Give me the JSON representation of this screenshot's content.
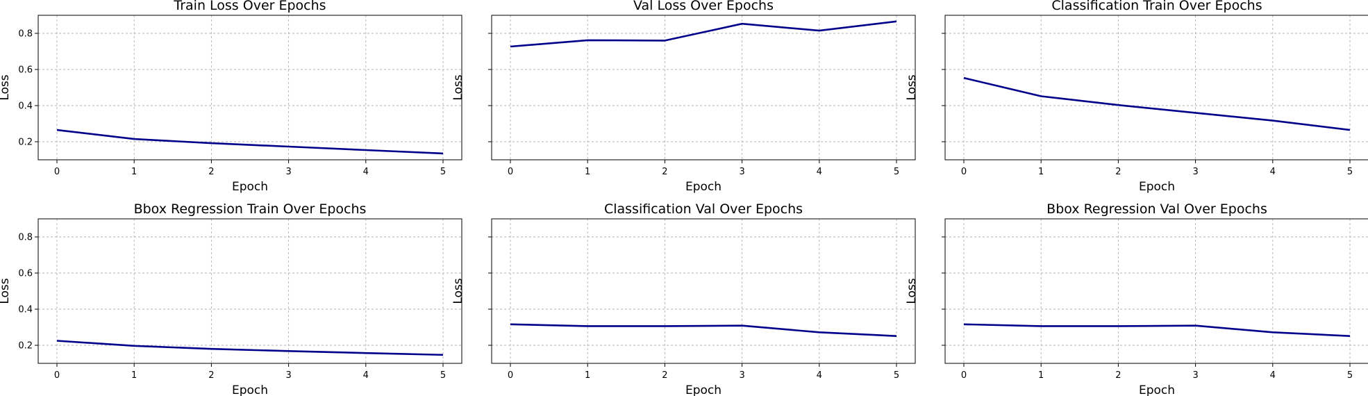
{
  "chart_data": [
    {
      "type": "line",
      "title": "Train Loss Over Epochs",
      "xlabel": "Epoch",
      "ylabel": "Loss",
      "x": [
        0,
        1,
        2,
        3,
        4,
        5
      ],
      "xticks": [
        "0",
        "1",
        "2",
        "3",
        "4",
        "5"
      ],
      "yticks": [
        "0.2",
        "0.4",
        "0.6",
        "0.8"
      ],
      "ylim": [
        0.1,
        0.9
      ],
      "y_tick_labels_shown": true,
      "grid": true,
      "series": [
        {
          "values": [
            0.265,
            0.215,
            0.192,
            0.173,
            0.154,
            0.135
          ]
        }
      ]
    },
    {
      "type": "line",
      "title": "Val Loss Over Epochs",
      "xlabel": "Epoch",
      "ylabel": "Loss",
      "x": [
        0,
        1,
        2,
        3,
        4,
        5
      ],
      "xticks": [
        "0",
        "1",
        "2",
        "3",
        "4",
        "5"
      ],
      "yticks": [
        "0.2",
        "0.4",
        "0.6",
        "0.8"
      ],
      "ylim": [
        0.1,
        0.9
      ],
      "y_tick_labels_shown": false,
      "grid": true,
      "series": [
        {
          "values": [
            0.727,
            0.762,
            0.76,
            0.853,
            0.815,
            0.866
          ]
        }
      ]
    },
    {
      "type": "line",
      "title": "Classification Train Over Epochs",
      "xlabel": "Epoch",
      "ylabel": "Loss",
      "x": [
        0,
        1,
        2,
        3,
        4,
        5
      ],
      "xticks": [
        "0",
        "1",
        "2",
        "3",
        "4",
        "5"
      ],
      "yticks": [
        "0.2",
        "0.4",
        "0.6",
        "0.8"
      ],
      "ylim": [
        0.1,
        0.9
      ],
      "y_tick_labels_shown": false,
      "grid": true,
      "series": [
        {
          "values": [
            0.553,
            0.452,
            0.403,
            0.36,
            0.317,
            0.265
          ]
        }
      ]
    },
    {
      "type": "line",
      "title": "Bbox Regression Train Over Epochs",
      "xlabel": "Epoch",
      "ylabel": "Loss",
      "x": [
        0,
        1,
        2,
        3,
        4,
        5
      ],
      "xticks": [
        "0",
        "1",
        "2",
        "3",
        "4",
        "5"
      ],
      "yticks": [
        "0.2",
        "0.4",
        "0.6",
        "0.8"
      ],
      "ylim": [
        0.1,
        0.9
      ],
      "y_tick_labels_shown": true,
      "grid": true,
      "series": [
        {
          "values": [
            0.225,
            0.197,
            0.18,
            0.168,
            0.157,
            0.147
          ]
        }
      ]
    },
    {
      "type": "line",
      "title": "Classification Val Over Epochs",
      "xlabel": "Epoch",
      "ylabel": "Loss",
      "x": [
        0,
        1,
        2,
        3,
        4,
        5
      ],
      "xticks": [
        "0",
        "1",
        "2",
        "3",
        "4",
        "5"
      ],
      "yticks": [
        "0.2",
        "0.4",
        "0.6",
        "0.8"
      ],
      "ylim": [
        0.1,
        0.9
      ],
      "y_tick_labels_shown": false,
      "grid": true,
      "series": [
        {
          "values": [
            0.316,
            0.306,
            0.306,
            0.309,
            0.272,
            0.251
          ]
        }
      ]
    },
    {
      "type": "line",
      "title": "Bbox Regression Val Over Epochs",
      "xlabel": "Epoch",
      "ylabel": "Loss",
      "x": [
        0,
        1,
        2,
        3,
        4,
        5
      ],
      "xticks": [
        "0",
        "1",
        "2",
        "3",
        "4",
        "5"
      ],
      "yticks": [
        "0.2",
        "0.4",
        "0.6",
        "0.8"
      ],
      "ylim": [
        0.1,
        0.9
      ],
      "y_tick_labels_shown": false,
      "grid": true,
      "series": [
        {
          "values": [
            0.316,
            0.306,
            0.306,
            0.309,
            0.272,
            0.251
          ]
        }
      ]
    }
  ],
  "colors": {
    "line": "#00008b",
    "grid": "#b0b0b0",
    "frame": "#000000"
  }
}
